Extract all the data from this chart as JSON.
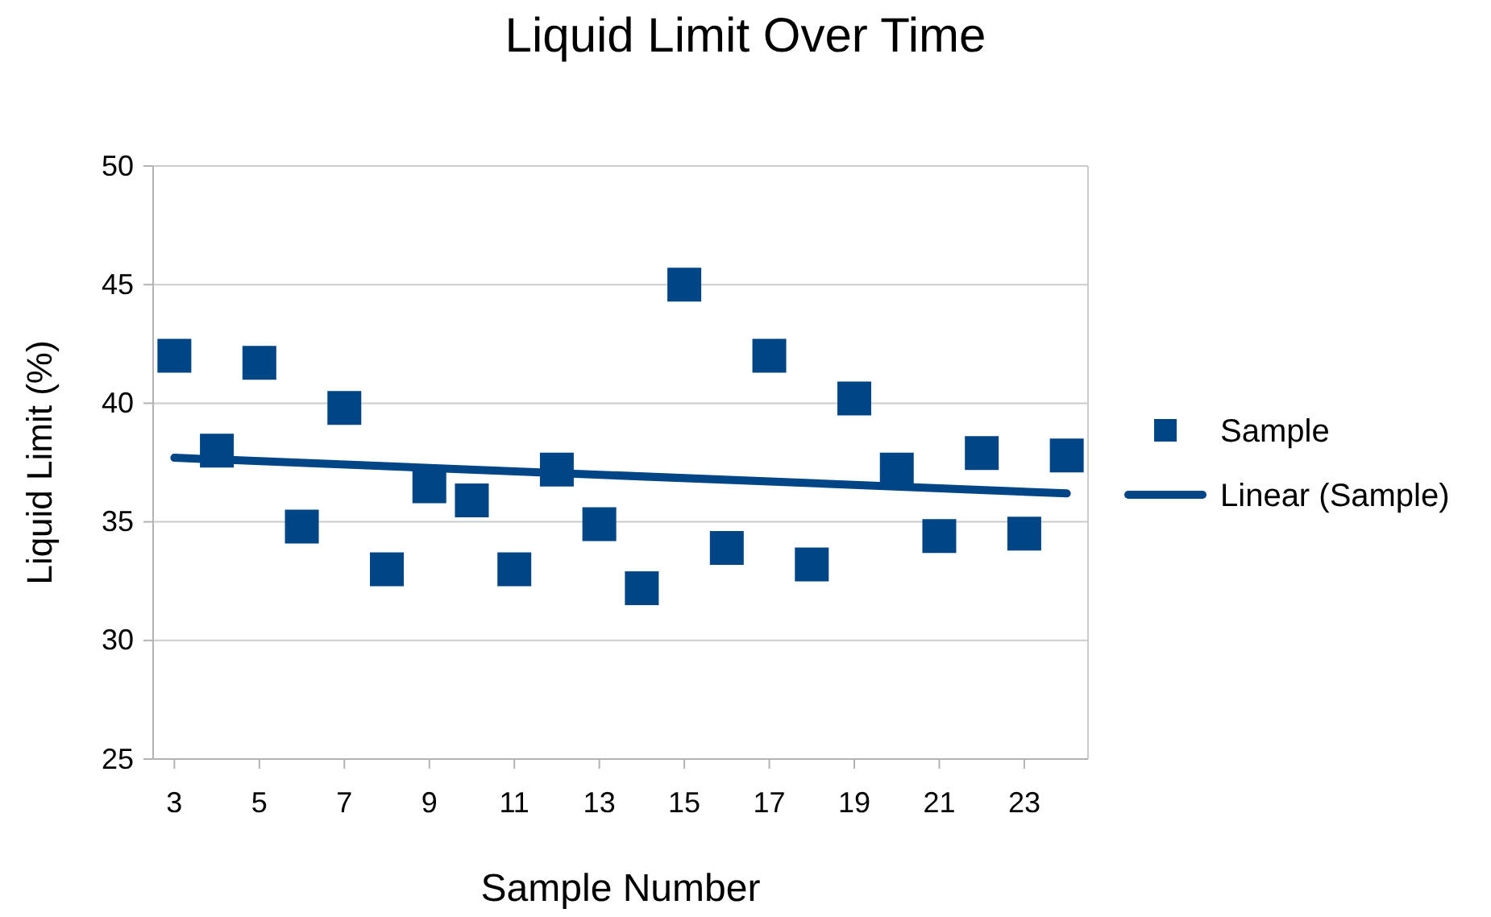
{
  "chart_data": {
    "type": "scatter",
    "title": "Liquid Limit Over Time",
    "xlabel": "Sample Number",
    "ylabel": "Liquid Limit (%)",
    "xlim": [
      2.5,
      24.5
    ],
    "xticks": [
      3,
      5,
      7,
      9,
      11,
      13,
      15,
      17,
      19,
      21,
      23
    ],
    "ylim": [
      25,
      50
    ],
    "yticks": [
      25,
      30,
      35,
      40,
      45,
      50
    ],
    "grid": "y",
    "legend": "right",
    "series": [
      {
        "name": "Sample",
        "marker": "square",
        "color": "#004586",
        "x": [
          3,
          4,
          5,
          6,
          7,
          8,
          9,
          10,
          11,
          12,
          13,
          14,
          15,
          16,
          17,
          18,
          19,
          20,
          21,
          22,
          23,
          24
        ],
        "values": [
          42.0,
          38.0,
          41.7,
          34.8,
          39.8,
          33.0,
          36.5,
          35.9,
          33.0,
          37.2,
          34.9,
          32.2,
          45.0,
          33.9,
          42.0,
          33.2,
          40.2,
          37.2,
          34.4,
          37.9,
          34.5,
          37.8
        ]
      },
      {
        "name": "Linear (Sample)",
        "type": "line",
        "marker": "none",
        "line_style": "solid",
        "color": "#004586",
        "x": [
          3,
          24
        ],
        "values": [
          37.7,
          36.2
        ]
      }
    ]
  }
}
